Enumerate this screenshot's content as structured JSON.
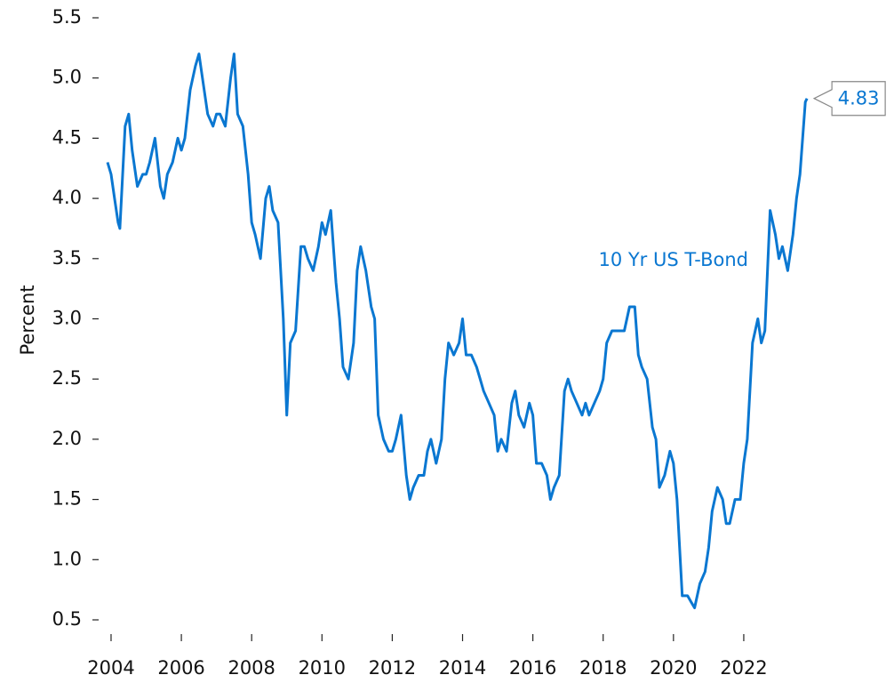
{
  "chart_data": {
    "type": "line",
    "y_label": "Percent",
    "xlim": [
      2003.5,
      2025
    ],
    "ylim": [
      0.5,
      5.5
    ],
    "xticks": [
      2004,
      2006,
      2008,
      2010,
      2012,
      2014,
      2016,
      2018,
      2020,
      2022
    ],
    "yticks": [
      0.5,
      {
        "value": 1,
        "label": "1.0"
      },
      1.5,
      {
        "value": 2,
        "label": "2.0"
      },
      2.5,
      {
        "value": 3,
        "label": "3.0"
      },
      3.5,
      {
        "value": 4,
        "label": "4.0"
      },
      4.5,
      {
        "value": 5,
        "label": "5.0"
      },
      5.5
    ],
    "grid": false,
    "x": [
      2003.9,
      2004.0,
      2004.1,
      2004.2,
      2004.25,
      2004.4,
      2004.5,
      2004.6,
      2004.75,
      2004.9,
      2005.0,
      2005.1,
      2005.25,
      2005.4,
      2005.5,
      2005.6,
      2005.75,
      2005.9,
      2006.0,
      2006.1,
      2006.25,
      2006.4,
      2006.5,
      2006.6,
      2006.75,
      2006.9,
      2007.0,
      2007.1,
      2007.25,
      2007.4,
      2007.5,
      2007.6,
      2007.75,
      2007.9,
      2008.0,
      2008.1,
      2008.25,
      2008.4,
      2008.5,
      2008.6,
      2008.75,
      2008.9,
      2009.0,
      2009.1,
      2009.25,
      2009.4,
      2009.5,
      2009.6,
      2009.75,
      2009.9,
      2010.0,
      2010.1,
      2010.25,
      2010.4,
      2010.5,
      2010.6,
      2010.75,
      2010.9,
      2011.0,
      2011.1,
      2011.25,
      2011.4,
      2011.5,
      2011.6,
      2011.75,
      2011.9,
      2012.0,
      2012.1,
      2012.25,
      2012.4,
      2012.5,
      2012.6,
      2012.75,
      2012.9,
      2013.0,
      2013.1,
      2013.25,
      2013.4,
      2013.5,
      2013.6,
      2013.75,
      2013.9,
      2014.0,
      2014.1,
      2014.25,
      2014.4,
      2014.5,
      2014.6,
      2014.75,
      2014.9,
      2015.0,
      2015.1,
      2015.25,
      2015.4,
      2015.5,
      2015.6,
      2015.75,
      2015.9,
      2016.0,
      2016.1,
      2016.25,
      2016.4,
      2016.5,
      2016.6,
      2016.75,
      2016.9,
      2017.0,
      2017.1,
      2017.25,
      2017.4,
      2017.5,
      2017.6,
      2017.75,
      2017.9,
      2018.0,
      2018.1,
      2018.25,
      2018.4,
      2018.5,
      2018.6,
      2018.75,
      2018.9,
      2019.0,
      2019.1,
      2019.25,
      2019.4,
      2019.5,
      2019.6,
      2019.75,
      2019.9,
      2020.0,
      2020.1,
      2020.25,
      2020.4,
      2020.5,
      2020.6,
      2020.75,
      2020.9,
      2021.0,
      2021.1,
      2021.25,
      2021.4,
      2021.5,
      2021.6,
      2021.75,
      2021.9,
      2022.0,
      2022.1,
      2022.25,
      2022.4,
      2022.5,
      2022.6,
      2022.75,
      2022.9,
      2023.0,
      2023.1,
      2023.25,
      2023.4,
      2023.5,
      2023.6,
      2023.75,
      2023.8
    ],
    "series": [
      {
        "name": "10 Yr US T-Bond",
        "color": "#0a77d1",
        "values": [
          4.3,
          4.2,
          4.0,
          3.8,
          3.75,
          4.6,
          4.7,
          4.4,
          4.1,
          4.2,
          4.2,
          4.3,
          4.5,
          4.1,
          4.0,
          4.2,
          4.3,
          4.5,
          4.4,
          4.5,
          4.9,
          5.1,
          5.2,
          5.0,
          4.7,
          4.6,
          4.7,
          4.7,
          4.6,
          5.0,
          5.2,
          4.7,
          4.6,
          4.2,
          3.8,
          3.7,
          3.5,
          4.0,
          4.1,
          3.9,
          3.8,
          3.0,
          2.2,
          2.8,
          2.9,
          3.6,
          3.6,
          3.5,
          3.4,
          3.6,
          3.8,
          3.7,
          3.9,
          3.3,
          3.0,
          2.6,
          2.5,
          2.8,
          3.4,
          3.6,
          3.4,
          3.1,
          3.0,
          2.2,
          2.0,
          1.9,
          1.9,
          2.0,
          2.2,
          1.7,
          1.5,
          1.6,
          1.7,
          1.7,
          1.9,
          2.0,
          1.8,
          2.0,
          2.5,
          2.8,
          2.7,
          2.8,
          3.0,
          2.7,
          2.7,
          2.6,
          2.5,
          2.4,
          2.3,
          2.2,
          1.9,
          2.0,
          1.9,
          2.3,
          2.4,
          2.2,
          2.1,
          2.3,
          2.2,
          1.8,
          1.8,
          1.7,
          1.5,
          1.6,
          1.7,
          2.4,
          2.5,
          2.4,
          2.3,
          2.2,
          2.3,
          2.2,
          2.3,
          2.4,
          2.5,
          2.8,
          2.9,
          2.9,
          2.9,
          2.9,
          3.1,
          3.1,
          2.7,
          2.6,
          2.5,
          2.1,
          2.0,
          1.6,
          1.7,
          1.9,
          1.8,
          1.5,
          0.7,
          0.7,
          0.65,
          0.6,
          0.8,
          0.9,
          1.1,
          1.4,
          1.6,
          1.5,
          1.3,
          1.3,
          1.5,
          1.5,
          1.8,
          2.0,
          2.8,
          3.0,
          2.8,
          2.9,
          3.9,
          3.7,
          3.5,
          3.6,
          3.4,
          3.7,
          4.0,
          4.2,
          4.8,
          4.83
        ]
      }
    ],
    "annotations": [
      {
        "text": "4.83",
        "x": 2023.8,
        "y": 4.83
      }
    ]
  }
}
